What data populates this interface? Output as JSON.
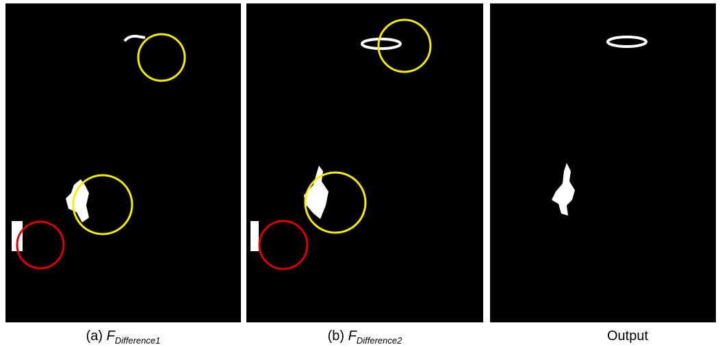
{
  "captions": [
    {
      "prefix": "(a) ",
      "symbol": "F",
      "subscript": "Difference1"
    },
    {
      "prefix": "(b) ",
      "symbol": "F",
      "subscript": "Difference2"
    },
    {
      "prefix": "Output"
    }
  ]
}
